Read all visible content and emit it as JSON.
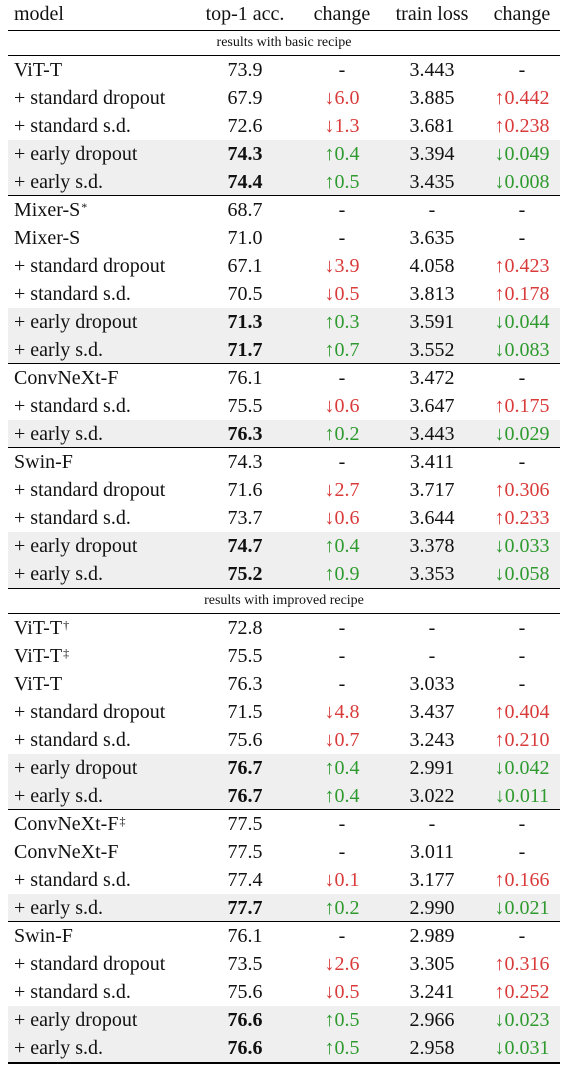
{
  "header": {
    "model": "model",
    "acc": "top-1 acc.",
    "change1": "change",
    "loss": "train loss",
    "change2": "change"
  },
  "sections": [
    {
      "title": "results with basic recipe",
      "groups": [
        {
          "rows": [
            {
              "model": "ViT-T",
              "sup": "",
              "acc": "73.9",
              "ch1": "-",
              "loss": "3.443",
              "ch2": "-"
            },
            {
              "model": "+ standard dropout",
              "sup": "",
              "acc": "67.9",
              "ch1": "↓6.0",
              "ch1_dir": "neg",
              "loss": "3.885",
              "ch2": "↑0.442",
              "ch2_dir": "neg"
            },
            {
              "model": "+ standard s.d.",
              "sup": "",
              "acc": "72.6",
              "ch1": "↓1.3",
              "ch1_dir": "neg",
              "loss": "3.681",
              "ch2": "↑0.238",
              "ch2_dir": "neg"
            },
            {
              "model": "+ early dropout",
              "sup": "",
              "acc": "74.3",
              "bold": true,
              "shade": true,
              "ch1": "↑0.4",
              "ch1_dir": "pos",
              "loss": "3.394",
              "ch2": "↓0.049",
              "ch2_dir": "pos"
            },
            {
              "model": "+ early s.d.",
              "sup": "",
              "acc": "74.4",
              "bold": true,
              "shade": true,
              "ch1": "↑0.5",
              "ch1_dir": "pos",
              "loss": "3.435",
              "ch2": "↓0.008",
              "ch2_dir": "pos"
            }
          ]
        },
        {
          "rows": [
            {
              "model": "Mixer-S",
              "sup": "*",
              "acc": "68.7",
              "ch1": "-",
              "loss": "-",
              "ch2": "-"
            },
            {
              "model": "Mixer-S",
              "sup": "",
              "acc": "71.0",
              "ch1": "-",
              "loss": "3.635",
              "ch2": "-"
            },
            {
              "model": "+ standard dropout",
              "sup": "",
              "acc": "67.1",
              "ch1": "↓3.9",
              "ch1_dir": "neg",
              "loss": "4.058",
              "ch2": "↑0.423",
              "ch2_dir": "neg"
            },
            {
              "model": "+ standard s.d.",
              "sup": "",
              "acc": "70.5",
              "ch1": "↓0.5",
              "ch1_dir": "neg",
              "loss": "3.813",
              "ch2": "↑0.178",
              "ch2_dir": "neg"
            },
            {
              "model": "+ early dropout",
              "sup": "",
              "acc": "71.3",
              "bold": true,
              "shade": true,
              "ch1": "↑0.3",
              "ch1_dir": "pos",
              "loss": "3.591",
              "ch2": "↓0.044",
              "ch2_dir": "pos"
            },
            {
              "model": "+ early s.d.",
              "sup": "",
              "acc": "71.7",
              "bold": true,
              "shade": true,
              "ch1": "↑0.7",
              "ch1_dir": "pos",
              "loss": "3.552",
              "ch2": "↓0.083",
              "ch2_dir": "pos"
            }
          ]
        },
        {
          "rows": [
            {
              "model": "ConvNeXt-F",
              "sup": "",
              "acc": "76.1",
              "ch1": "-",
              "loss": "3.472",
              "ch2": "-"
            },
            {
              "model": "+ standard s.d.",
              "sup": "",
              "acc": "75.5",
              "ch1": "↓0.6",
              "ch1_dir": "neg",
              "loss": "3.647",
              "ch2": "↑0.175",
              "ch2_dir": "neg"
            },
            {
              "model": "+ early s.d.",
              "sup": "",
              "acc": "76.3",
              "bold": true,
              "shade": true,
              "ch1": "↑0.2",
              "ch1_dir": "pos",
              "loss": "3.443",
              "ch2": "↓0.029",
              "ch2_dir": "pos"
            }
          ]
        },
        {
          "rows": [
            {
              "model": "Swin-F",
              "sup": "",
              "acc": "74.3",
              "ch1": "-",
              "loss": "3.411",
              "ch2": "-"
            },
            {
              "model": "+ standard dropout",
              "sup": "",
              "acc": "71.6",
              "ch1": "↓2.7",
              "ch1_dir": "neg",
              "loss": "3.717",
              "ch2": "↑0.306",
              "ch2_dir": "neg"
            },
            {
              "model": "+ standard s.d.",
              "sup": "",
              "acc": "73.7",
              "ch1": "↓0.6",
              "ch1_dir": "neg",
              "loss": "3.644",
              "ch2": "↑0.233",
              "ch2_dir": "neg"
            },
            {
              "model": "+ early dropout",
              "sup": "",
              "acc": "74.7",
              "bold": true,
              "shade": true,
              "ch1": "↑0.4",
              "ch1_dir": "pos",
              "loss": "3.378",
              "ch2": "↓0.033",
              "ch2_dir": "pos"
            },
            {
              "model": "+ early s.d.",
              "sup": "",
              "acc": "75.2",
              "bold": true,
              "shade": true,
              "ch1": "↑0.9",
              "ch1_dir": "pos",
              "loss": "3.353",
              "ch2": "↓0.058",
              "ch2_dir": "pos"
            }
          ]
        }
      ]
    },
    {
      "title": "results with improved recipe",
      "groups": [
        {
          "rows": [
            {
              "model": "ViT-T",
              "sup": "†",
              "acc": "72.8",
              "ch1": "-",
              "loss": "-",
              "ch2": "-"
            },
            {
              "model": "ViT-T",
              "sup": "‡",
              "acc": "75.5",
              "ch1": "-",
              "loss": "-",
              "ch2": "-"
            },
            {
              "model": "ViT-T",
              "sup": "",
              "acc": "76.3",
              "ch1": "-",
              "loss": "3.033",
              "ch2": "-"
            },
            {
              "model": "+ standard dropout",
              "sup": "",
              "acc": "71.5",
              "ch1": "↓4.8",
              "ch1_dir": "neg",
              "loss": "3.437",
              "ch2": "↑0.404",
              "ch2_dir": "neg"
            },
            {
              "model": "+ standard s.d.",
              "sup": "",
              "acc": "75.6",
              "ch1": "↓0.7",
              "ch1_dir": "neg",
              "loss": "3.243",
              "ch2": "↑0.210",
              "ch2_dir": "neg"
            },
            {
              "model": "+ early dropout",
              "sup": "",
              "acc": "76.7",
              "bold": true,
              "shade": true,
              "ch1": "↑0.4",
              "ch1_dir": "pos",
              "loss": "2.991",
              "ch2": "↓0.042",
              "ch2_dir": "pos"
            },
            {
              "model": "+ early s.d.",
              "sup": "",
              "acc": "76.7",
              "bold": true,
              "shade": true,
              "ch1": "↑0.4",
              "ch1_dir": "pos",
              "loss": "3.022",
              "ch2": "↓0.011",
              "ch2_dir": "pos"
            }
          ]
        },
        {
          "rows": [
            {
              "model": "ConvNeXt-F",
              "sup": "‡",
              "acc": "77.5",
              "ch1": "-",
              "loss": "-",
              "ch2": "-"
            },
            {
              "model": "ConvNeXt-F",
              "sup": "",
              "acc": "77.5",
              "ch1": "-",
              "loss": "3.011",
              "ch2": "-"
            },
            {
              "model": "+ standard s.d.",
              "sup": "",
              "acc": "77.4",
              "ch1": "↓0.1",
              "ch1_dir": "neg",
              "loss": "3.177",
              "ch2": "↑0.166",
              "ch2_dir": "neg"
            },
            {
              "model": "+ early s.d.",
              "sup": "",
              "acc": "77.7",
              "bold": true,
              "shade": true,
              "ch1": "↑0.2",
              "ch1_dir": "pos",
              "loss": "2.990",
              "ch2": "↓0.021",
              "ch2_dir": "pos"
            }
          ]
        },
        {
          "rows": [
            {
              "model": "Swin-F",
              "sup": "",
              "acc": "76.1",
              "ch1": "-",
              "loss": "2.989",
              "ch2": "-"
            },
            {
              "model": "+ standard dropout",
              "sup": "",
              "acc": "73.5",
              "ch1": "↓2.6",
              "ch1_dir": "neg",
              "loss": "3.305",
              "ch2": "↑0.316",
              "ch2_dir": "neg"
            },
            {
              "model": "+ standard s.d.",
              "sup": "",
              "acc": "75.6",
              "ch1": "↓0.5",
              "ch1_dir": "neg",
              "loss": "3.241",
              "ch2": "↑0.252",
              "ch2_dir": "neg"
            },
            {
              "model": "+ early dropout",
              "sup": "",
              "acc": "76.6",
              "bold": true,
              "shade": true,
              "ch1": "↑0.5",
              "ch1_dir": "pos",
              "loss": "2.966",
              "ch2": "↓0.023",
              "ch2_dir": "pos"
            },
            {
              "model": "+ early s.d.",
              "sup": "",
              "acc": "76.6",
              "bold": true,
              "shade": true,
              "ch1": "↑0.5",
              "ch1_dir": "pos",
              "loss": "2.958",
              "ch2": "↓0.031",
              "ch2_dir": "pos"
            }
          ]
        }
      ]
    }
  ],
  "colors": {
    "negative": "#d93b3b",
    "positive": "#2f9a2f",
    "shade": "#efefef"
  }
}
